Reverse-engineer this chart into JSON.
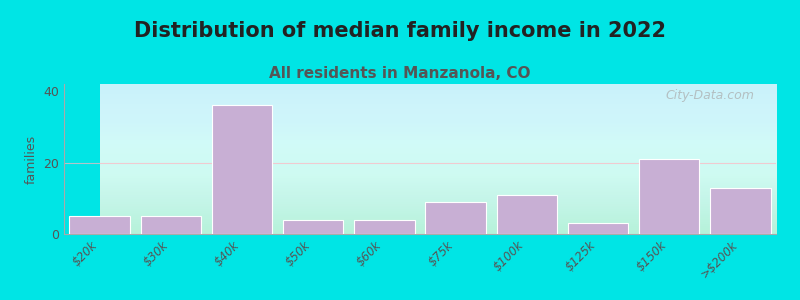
{
  "title": "Distribution of median family income in 2022",
  "subtitle": "All residents in Manzanola, CO",
  "xlabel": "",
  "ylabel": "families",
  "categories": [
    "$20k",
    "$30k",
    "$40k",
    "$50k",
    "$60k",
    "$75k",
    "$100k",
    "$125k",
    "$150k",
    ">$200k"
  ],
  "values": [
    5,
    5,
    36,
    4,
    4,
    9,
    11,
    3,
    21,
    13
  ],
  "bar_color": "#c8afd4",
  "bar_edge_color": "#ffffff",
  "background_color": "#00e5e5",
  "plot_bg_gradient_top": "#f0fff0",
  "plot_bg_gradient_bottom": "#f0f8ff",
  "grid_color": "#ffb6c1",
  "ylim": [
    0,
    42
  ],
  "yticks": [
    0,
    20,
    40
  ],
  "title_fontsize": 15,
  "subtitle_fontsize": 11,
  "ylabel_fontsize": 9,
  "watermark_text": "City-Data.com"
}
